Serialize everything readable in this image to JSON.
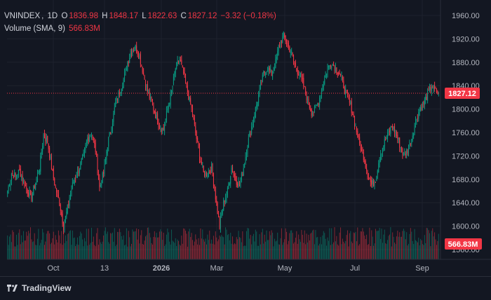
{
  "legend": {
    "symbol": "VNINDEX",
    "interval": "1D",
    "o_label": "O",
    "o": "1836.98",
    "h_label": "H",
    "h": "1848.17",
    "l_label": "L",
    "l": "1822.63",
    "c_label": "C",
    "c": "1827.12",
    "change": "−3.32 (−0.18%)",
    "volume_label": "Volume (SMA, 9)",
    "volume_value": "566.83M"
  },
  "footer": {
    "brand": "TradingView"
  },
  "chart_data": {
    "type": "candlestick",
    "price_axis": {
      "ticks": [
        "1960.00",
        "1920.00",
        "1880.00",
        "1840.00",
        "1800.00",
        "1760.00",
        "1720.00",
        "1680.00",
        "1640.00",
        "1600.00",
        "1560.00"
      ],
      "ylim": [
        1560,
        1960
      ]
    },
    "time_axis": [
      "Oct",
      "13",
      "2026",
      "Mar",
      "May",
      "Jul",
      "Sep"
    ],
    "last_price_label": "1827.12",
    "volume_label": "566.83M",
    "anchors": [
      [
        0,
        1660
      ],
      [
        4,
        1690
      ],
      [
        8,
        1685
      ],
      [
        12,
        1695
      ],
      [
        16,
        1675
      ],
      [
        20,
        1660
      ],
      [
        24,
        1650
      ],
      [
        28,
        1675
      ],
      [
        32,
        1700
      ],
      [
        36,
        1755
      ],
      [
        40,
        1745
      ],
      [
        44,
        1700
      ],
      [
        48,
        1665
      ],
      [
        52,
        1640
      ],
      [
        56,
        1600
      ],
      [
        60,
        1630
      ],
      [
        64,
        1665
      ],
      [
        68,
        1685
      ],
      [
        72,
        1700
      ],
      [
        76,
        1720
      ],
      [
        80,
        1750
      ],
      [
        84,
        1760
      ],
      [
        88,
        1730
      ],
      [
        92,
        1665
      ],
      [
        96,
        1690
      ],
      [
        100,
        1740
      ],
      [
        104,
        1770
      ],
      [
        108,
        1810
      ],
      [
        112,
        1830
      ],
      [
        116,
        1850
      ],
      [
        120,
        1880
      ],
      [
        124,
        1900
      ],
      [
        128,
        1905
      ],
      [
        132,
        1890
      ],
      [
        136,
        1860
      ],
      [
        140,
        1830
      ],
      [
        144,
        1810
      ],
      [
        148,
        1790
      ],
      [
        152,
        1770
      ],
      [
        156,
        1765
      ],
      [
        160,
        1800
      ],
      [
        164,
        1830
      ],
      [
        168,
        1870
      ],
      [
        172,
        1885
      ],
      [
        176,
        1860
      ],
      [
        180,
        1830
      ],
      [
        184,
        1800
      ],
      [
        188,
        1760
      ],
      [
        192,
        1720
      ],
      [
        196,
        1690
      ],
      [
        200,
        1690
      ],
      [
        204,
        1700
      ],
      [
        208,
        1650
      ],
      [
        212,
        1600
      ],
      [
        216,
        1640
      ],
      [
        220,
        1660
      ],
      [
        224,
        1700
      ],
      [
        228,
        1680
      ],
      [
        232,
        1670
      ],
      [
        236,
        1700
      ],
      [
        240,
        1740
      ],
      [
        244,
        1770
      ],
      [
        248,
        1800
      ],
      [
        252,
        1830
      ],
      [
        256,
        1860
      ],
      [
        260,
        1870
      ],
      [
        264,
        1860
      ],
      [
        268,
        1880
      ],
      [
        272,
        1910
      ],
      [
        276,
        1925
      ],
      [
        280,
        1910
      ],
      [
        284,
        1895
      ],
      [
        288,
        1870
      ],
      [
        292,
        1860
      ],
      [
        296,
        1840
      ],
      [
        300,
        1815
      ],
      [
        304,
        1795
      ],
      [
        308,
        1800
      ],
      [
        312,
        1820
      ],
      [
        316,
        1845
      ],
      [
        320,
        1870
      ],
      [
        324,
        1880
      ],
      [
        328,
        1870
      ],
      [
        332,
        1860
      ],
      [
        336,
        1840
      ],
      [
        340,
        1820
      ],
      [
        344,
        1800
      ],
      [
        348,
        1770
      ],
      [
        352,
        1740
      ],
      [
        356,
        1720
      ],
      [
        360,
        1690
      ],
      [
        364,
        1670
      ],
      [
        368,
        1680
      ],
      [
        372,
        1720
      ],
      [
        376,
        1740
      ],
      [
        380,
        1755
      ],
      [
        384,
        1770
      ],
      [
        388,
        1760
      ],
      [
        392,
        1740
      ],
      [
        396,
        1720
      ],
      [
        400,
        1730
      ],
      [
        404,
        1750
      ],
      [
        408,
        1780
      ],
      [
        412,
        1800
      ],
      [
        416,
        1810
      ],
      [
        420,
        1825
      ],
      [
        424,
        1840
      ],
      [
        428,
        1830
      ],
      [
        431,
        1827.12
      ]
    ]
  }
}
